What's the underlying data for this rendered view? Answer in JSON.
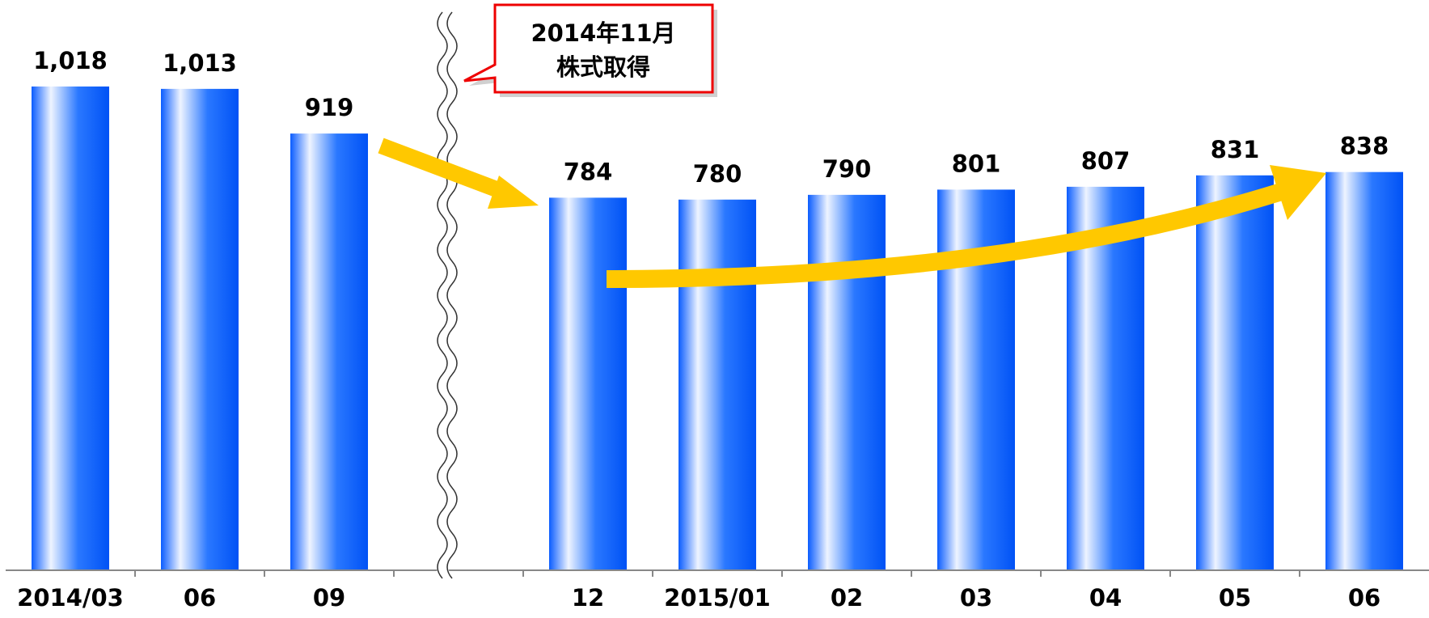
{
  "chart_data": {
    "type": "bar",
    "categories": [
      "2014/03",
      "06",
      "09",
      null,
      "12",
      "2015/01",
      "02",
      "03",
      "04",
      "05",
      "06"
    ],
    "values": [
      1018,
      1013,
      919,
      null,
      784,
      780,
      790,
      801,
      807,
      831,
      838
    ],
    "value_labels": [
      "1,018",
      "1,013",
      "919",
      null,
      "784",
      "780",
      "790",
      "801",
      "807",
      "831",
      "838"
    ],
    "ylim": [
      0,
      1200
    ],
    "annotations": [
      "2014年11月",
      "株式取得"
    ]
  }
}
